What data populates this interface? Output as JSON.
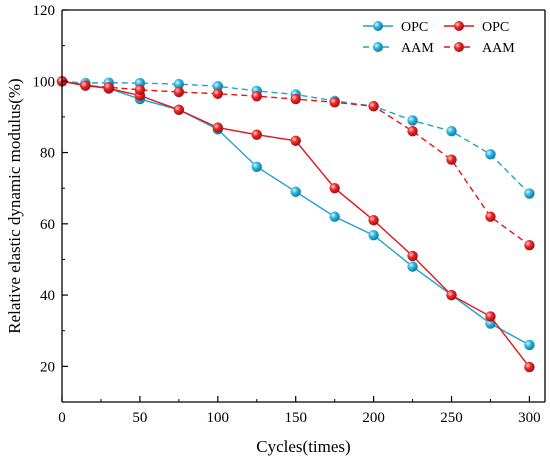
{
  "chart_data": {
    "type": "line",
    "xlabel": "Cycles(times)",
    "ylabel": "Relative elastic dynamic modulus(%)",
    "xlim": [
      0,
      310
    ],
    "ylim": [
      10,
      120
    ],
    "xticks": [
      0,
      50,
      100,
      150,
      200,
      250,
      300
    ],
    "yticks": [
      20,
      40,
      60,
      80,
      100,
      120
    ],
    "grid": false,
    "legend_position": "top-right",
    "series": [
      {
        "name": "OPC",
        "color": "#1fa3c9",
        "dash": false,
        "x": [
          0,
          15,
          30,
          50,
          75,
          100,
          125,
          150,
          175,
          200,
          225,
          250,
          275,
          300
        ],
        "values": [
          100,
          99,
          98,
          95,
          92,
          86.5,
          76,
          69,
          62,
          56.8,
          48,
          40,
          32,
          26
        ]
      },
      {
        "name": "OPC",
        "color": "#e0161b",
        "dash": false,
        "x": [
          0,
          15,
          30,
          50,
          75,
          100,
          125,
          150,
          175,
          200,
          225,
          250,
          275,
          300
        ],
        "values": [
          100,
          98.8,
          98,
          96,
          92,
          87,
          85,
          83.3,
          70,
          61,
          51,
          40,
          34,
          19.8
        ]
      },
      {
        "name": "AAM",
        "color": "#1fa3c9",
        "dash": true,
        "x": [
          0,
          15,
          30,
          50,
          75,
          100,
          125,
          150,
          175,
          200,
          225,
          250,
          275,
          300
        ],
        "values": [
          100,
          99.5,
          99.6,
          99.5,
          99.2,
          98.6,
          97.3,
          96.3,
          94.5,
          93,
          89,
          86,
          79.5,
          68.5
        ]
      },
      {
        "name": "AAM",
        "color": "#e0161b",
        "dash": true,
        "x": [
          0,
          15,
          30,
          50,
          75,
          100,
          125,
          150,
          175,
          200,
          225,
          250,
          275,
          300
        ],
        "values": [
          100,
          98.8,
          98.3,
          97.6,
          97,
          96.5,
          95.8,
          95,
          94.1,
          93,
          86,
          78,
          62,
          54
        ]
      }
    ]
  }
}
